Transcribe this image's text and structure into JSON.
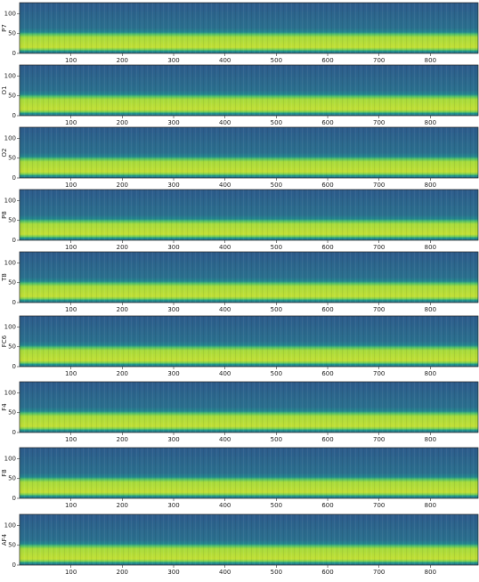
{
  "chart_data": [
    {
      "type": "spectrogram",
      "ylabel": "P7",
      "xlim": [
        0,
        893
      ],
      "ylim": [
        0,
        128
      ],
      "xticks": [
        100,
        200,
        300,
        400,
        500,
        600,
        700,
        800
      ],
      "yticks": [
        0,
        50,
        100
      ]
    },
    {
      "type": "spectrogram",
      "ylabel": "O1",
      "xlim": [
        0,
        893
      ],
      "ylim": [
        0,
        128
      ],
      "xticks": [
        100,
        200,
        300,
        400,
        500,
        600,
        700,
        800
      ],
      "yticks": [
        0,
        50,
        100
      ]
    },
    {
      "type": "spectrogram",
      "ylabel": "O2",
      "xlim": [
        0,
        893
      ],
      "ylim": [
        0,
        128
      ],
      "xticks": [
        100,
        200,
        300,
        400,
        500,
        600,
        700,
        800
      ],
      "yticks": [
        0,
        50,
        100
      ]
    },
    {
      "type": "spectrogram",
      "ylabel": "P8",
      "xlim": [
        0,
        893
      ],
      "ylim": [
        0,
        128
      ],
      "xticks": [
        100,
        200,
        300,
        400,
        500,
        600,
        700,
        800
      ],
      "yticks": [
        0,
        50,
        100
      ]
    },
    {
      "type": "spectrogram",
      "ylabel": "T8",
      "xlim": [
        0,
        893
      ],
      "ylim": [
        0,
        128
      ],
      "xticks": [
        100,
        200,
        300,
        400,
        500,
        600,
        700,
        800
      ],
      "yticks": [
        0,
        50,
        100
      ]
    },
    {
      "type": "spectrogram",
      "ylabel": "FC6",
      "xlim": [
        0,
        893
      ],
      "ylim": [
        0,
        128
      ],
      "xticks": [
        100,
        200,
        300,
        400,
        500,
        600,
        700,
        800
      ],
      "yticks": [
        0,
        50,
        100
      ]
    },
    {
      "type": "spectrogram",
      "ylabel": "F4",
      "xlim": [
        0,
        893
      ],
      "ylim": [
        0,
        128
      ],
      "xticks": [
        100,
        200,
        300,
        400,
        500,
        600,
        700,
        800
      ],
      "yticks": [
        0,
        50,
        100
      ]
    },
    {
      "type": "spectrogram",
      "ylabel": "F8",
      "xlim": [
        0,
        893
      ],
      "ylim": [
        0,
        128
      ],
      "xticks": [
        100,
        200,
        300,
        400,
        500,
        600,
        700,
        800
      ],
      "yticks": [
        0,
        50,
        100
      ]
    },
    {
      "type": "spectrogram",
      "ylabel": "AF4",
      "xlim": [
        0,
        893
      ],
      "ylim": [
        0,
        128
      ],
      "xticks": [
        100,
        200,
        300,
        400,
        500,
        600,
        700,
        800
      ],
      "yticks": [
        0,
        50,
        100
      ]
    }
  ]
}
